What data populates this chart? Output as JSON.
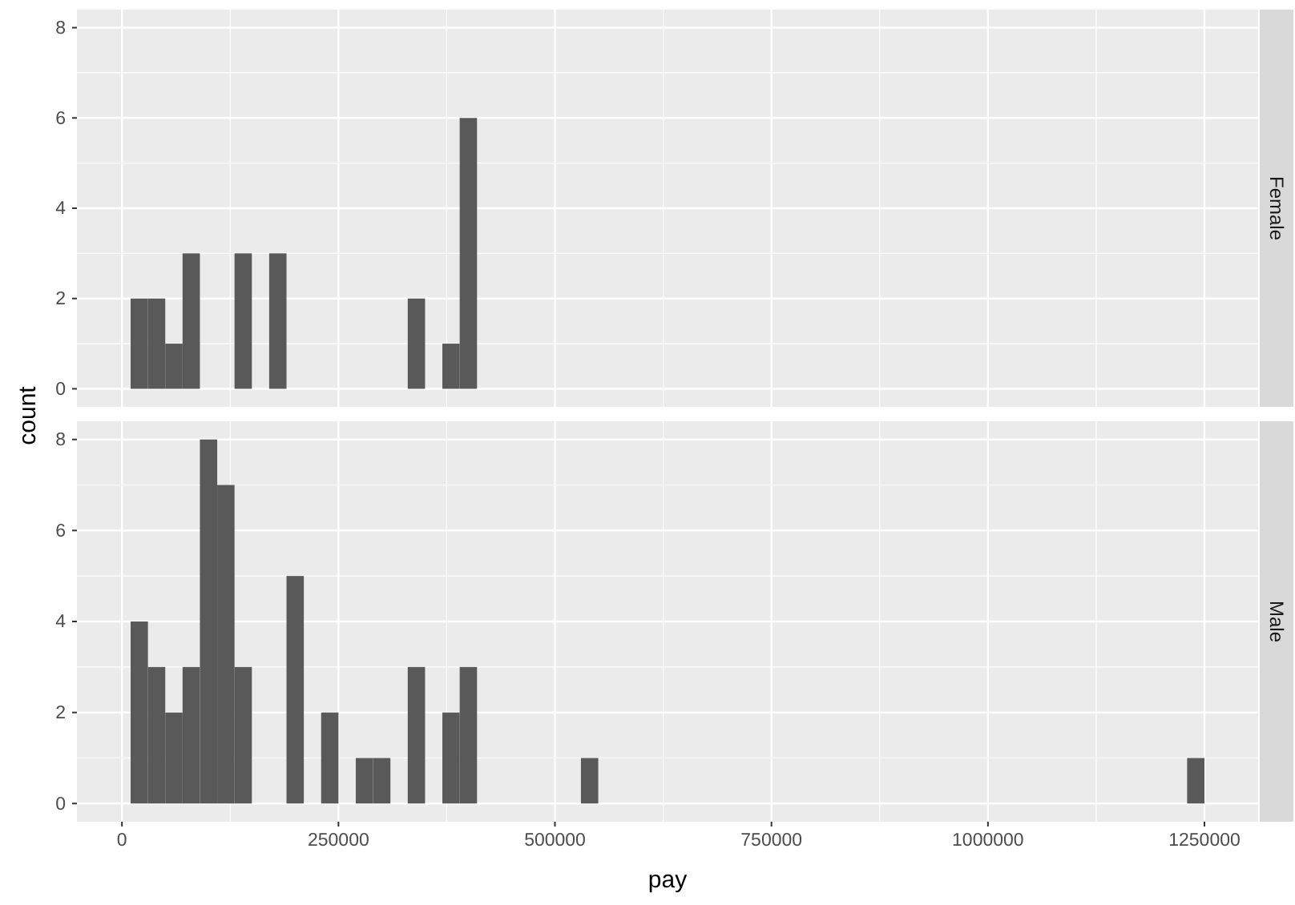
{
  "chart_data": [
    {
      "type": "histogram",
      "title": "Female",
      "ylabel": "count",
      "bins": [
        10000,
        30000,
        50000,
        70000,
        90000,
        110000,
        130000,
        150000,
        170000,
        190000,
        210000,
        230000,
        250000,
        270000,
        290000,
        310000,
        330000,
        350000,
        370000,
        390000,
        410000,
        430000,
        450000,
        470000,
        490000,
        510000,
        530000,
        550000,
        570000,
        590000,
        610000,
        630000,
        650000,
        670000,
        690000,
        710000,
        730000,
        750000,
        770000,
        790000,
        810000,
        830000,
        850000,
        870000,
        890000,
        910000,
        930000,
        950000,
        970000,
        990000,
        1010000,
        1030000,
        1050000,
        1070000,
        1090000,
        1110000,
        1130000,
        1150000,
        1170000,
        1190000,
        1210000,
        1230000,
        1250000
      ],
      "values": [
        2,
        2,
        1,
        3,
        0,
        0,
        3,
        0,
        3,
        0,
        0,
        0,
        0,
        0,
        0,
        0,
        2,
        0,
        1,
        6,
        0,
        0,
        0,
        0,
        0,
        0,
        0,
        0,
        0,
        0,
        0,
        0,
        0,
        0,
        0,
        0,
        0,
        0,
        0,
        0,
        0,
        0,
        0,
        0,
        0,
        0,
        0,
        0,
        0,
        0,
        0,
        0,
        0,
        0,
        0,
        0,
        0,
        0,
        0,
        0,
        0,
        0
      ],
      "color": "#595959",
      "xlim": [
        -52000,
        1312000
      ],
      "xticks": [
        0,
        250000,
        500000,
        750000,
        1000000,
        1250000
      ],
      "ylim": [
        -0.4,
        8.4
      ],
      "yticks": [
        0,
        2,
        4,
        6,
        8
      ],
      "grid": true,
      "tick_labels": "y"
    },
    {
      "type": "histogram",
      "title": "Male",
      "xlabel": "pay",
      "bins": [
        10000,
        30000,
        50000,
        70000,
        90000,
        110000,
        130000,
        150000,
        170000,
        190000,
        210000,
        230000,
        250000,
        270000,
        290000,
        310000,
        330000,
        350000,
        370000,
        390000,
        410000,
        430000,
        450000,
        470000,
        490000,
        510000,
        530000,
        550000,
        570000,
        590000,
        610000,
        630000,
        650000,
        670000,
        690000,
        710000,
        730000,
        750000,
        770000,
        790000,
        810000,
        830000,
        850000,
        870000,
        890000,
        910000,
        930000,
        950000,
        970000,
        990000,
        1010000,
        1030000,
        1050000,
        1070000,
        1090000,
        1110000,
        1130000,
        1150000,
        1170000,
        1190000,
        1210000,
        1230000,
        1250000
      ],
      "values": [
        4,
        3,
        2,
        3,
        8,
        7,
        3,
        0,
        0,
        5,
        0,
        2,
        0,
        1,
        1,
        0,
        3,
        0,
        2,
        3,
        0,
        0,
        0,
        0,
        0,
        0,
        1,
        0,
        0,
        0,
        0,
        0,
        0,
        0,
        0,
        0,
        0,
        0,
        0,
        0,
        0,
        0,
        0,
        0,
        0,
        0,
        0,
        0,
        0,
        0,
        0,
        0,
        0,
        0,
        0,
        0,
        0,
        0,
        0,
        0,
        0,
        1
      ],
      "color": "#595959",
      "xlim": [
        -52000,
        1312000
      ],
      "xticks": [
        0,
        250000,
        500000,
        750000,
        1000000,
        1250000
      ],
      "ylim": [
        -0.4,
        8.4
      ],
      "yticks": [
        0,
        2,
        4,
        6,
        8
      ],
      "grid": true
    }
  ]
}
